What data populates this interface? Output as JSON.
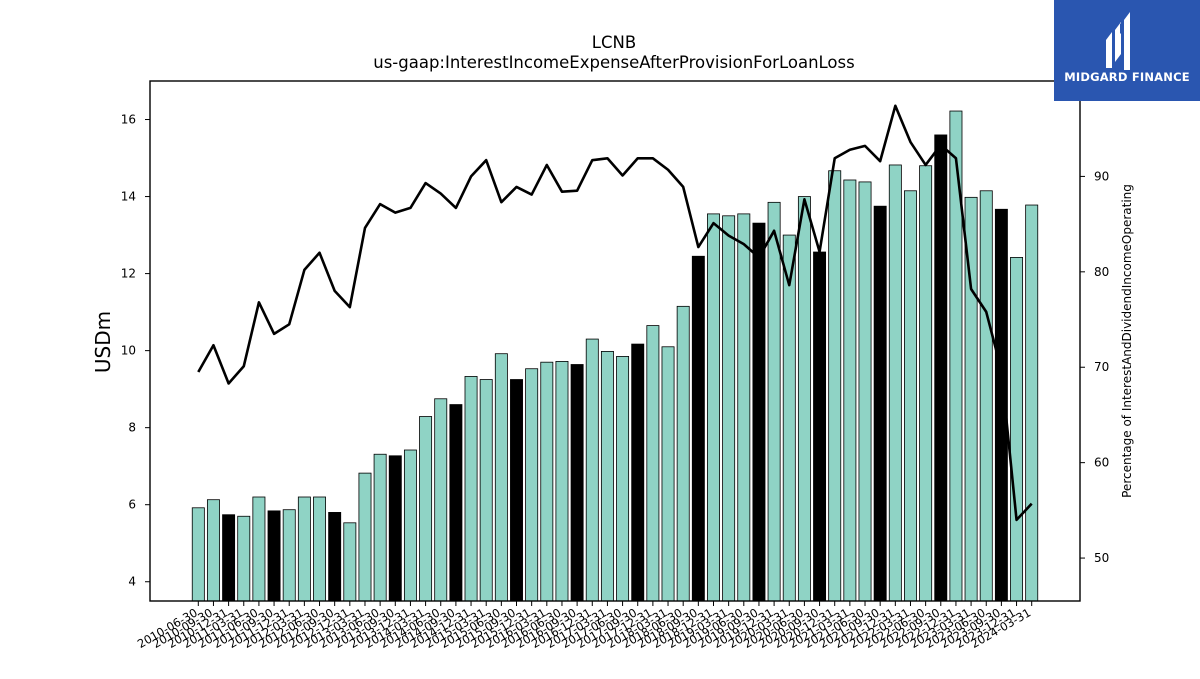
{
  "brand": {
    "name": "MIDGARD FINANCE",
    "bg_color": "#2a56b0"
  },
  "chart_data": {
    "type": "bar",
    "title": "LCNB",
    "subtitle": "us-gaap:InterestIncomeExpenseAfterProvisionForLoanLoss",
    "ylabel": "USDm",
    "y2label": "Percentage of InterestAndDividendIncomeOperating",
    "ylim": [
      3.5,
      17.0
    ],
    "y2lim": [
      45.5,
      100.0
    ],
    "yticks": [
      4,
      6,
      8,
      10,
      12,
      14,
      16
    ],
    "y2ticks": [
      50,
      60,
      70,
      80,
      90
    ],
    "bar_color": "#8fd3c5",
    "highlight_color": "#000000",
    "line_color": "#000000",
    "categories": [
      "2010-06-30",
      "2010-09-30",
      "2010-12-31",
      "2011-03-31",
      "2011-06-30",
      "2011-09-30",
      "2011-12-31",
      "2012-03-31",
      "2012-06-30",
      "2012-09-30",
      "2012-12-31",
      "2013-03-31",
      "2013-06-30",
      "2013-09-30",
      "2013-12-31",
      "2014-03-31",
      "2014-06-30",
      "2014-09-30",
      "2014-12-31",
      "2015-03-31",
      "2015-06-30",
      "2015-09-30",
      "2015-12-31",
      "2016-03-31",
      "2016-06-30",
      "2016-09-30",
      "2016-12-31",
      "2017-03-31",
      "2017-06-30",
      "2017-09-30",
      "2017-12-31",
      "2018-03-31",
      "2018-06-30",
      "2018-09-30",
      "2018-12-31",
      "2019-03-31",
      "2019-06-30",
      "2019-09-30",
      "2019-12-31",
      "2020-03-31",
      "2020-06-30",
      "2020-09-30",
      "2020-12-31",
      "2021-03-31",
      "2021-06-30",
      "2021-09-30",
      "2021-12-31",
      "2022-03-31",
      "2022-06-30",
      "2022-09-30",
      "2022-12-31",
      "2023-03-31",
      "2023-06-30",
      "2023-09-30",
      "2023-12-31",
      "2024-03-31"
    ],
    "tick_labels": [
      "2010-06-30",
      "2010-09-30",
      "2010-12-31",
      "2011-03-31",
      "2011-06-30",
      "2011-09-30",
      "2011-12-31",
      "2012-03-31",
      "2012-06-30",
      "2012-09-30",
      "2012-12-31",
      "2013-03-31",
      "2013-06-30",
      "2013-09-30",
      "2013-12-31",
      "2014-03-31",
      "2014-06-30",
      "2014-09-30",
      "2014-12-31",
      "2015-03-31",
      "2015-06-30",
      "2015-09-30",
      "2015-12-31",
      "2016-03-31",
      "2016-06-30",
      "2016-09-30",
      "2016-12-31",
      "2017-03-31",
      "2017-06-30",
      "2017-09-30",
      "2017-12-31",
      "2018-03-31",
      "2018-06-30",
      "2018-09-30",
      "2018-12-31",
      "2019-03-31",
      "2019-06-30",
      "2019-09-30",
      "2019-12-31",
      "2020-03-31",
      "2020-06-30",
      "2020-09-30",
      "2020-12-31",
      "2021-03-31",
      "2021-06-30",
      "2021-09-30",
      "2021-12-31",
      "2022-03-31",
      "2022-06-30",
      "2022-09-30",
      "2022-12-31",
      "2023-03-31",
      "2023-06-30",
      "2023-09-30",
      "2023-12-31",
      "2024-03-31"
    ],
    "values": [
      5.92,
      6.13,
      5.74,
      5.7,
      6.2,
      5.84,
      5.87,
      6.2,
      6.2,
      5.8,
      5.53,
      6.82,
      7.31,
      7.27,
      7.42,
      8.29,
      8.75,
      8.6,
      9.33,
      9.25,
      9.92,
      9.25,
      9.53,
      9.7,
      9.72,
      9.64,
      10.3,
      9.98,
      9.85,
      10.17,
      10.65,
      10.1,
      11.15,
      12.45,
      13.55,
      13.5,
      13.55,
      13.31,
      13.85,
      13.0,
      14.0,
      12.56,
      14.67,
      14.43,
      14.38,
      13.75,
      14.82,
      14.15,
      14.8,
      15.6,
      16.22,
      13.98,
      14.15,
      13.67,
      12.42,
      13.78
    ],
    "highlighted": [
      false,
      false,
      true,
      false,
      false,
      true,
      false,
      false,
      false,
      true,
      false,
      false,
      false,
      true,
      false,
      false,
      false,
      true,
      false,
      false,
      false,
      true,
      false,
      false,
      false,
      true,
      false,
      false,
      false,
      true,
      false,
      false,
      false,
      true,
      false,
      false,
      false,
      true,
      false,
      false,
      false,
      true,
      false,
      false,
      false,
      true,
      false,
      false,
      false,
      true,
      false,
      false,
      false,
      true,
      false,
      false
    ],
    "line_values": [
      69.5,
      72.3,
      68.3,
      70.1,
      76.8,
      73.5,
      74.5,
      80.2,
      82.0,
      78.0,
      76.3,
      84.6,
      87.1,
      86.2,
      86.7,
      89.3,
      88.2,
      86.7,
      90.0,
      91.7,
      87.3,
      88.9,
      88.1,
      91.2,
      88.4,
      88.5,
      91.7,
      91.9,
      90.1,
      91.9,
      91.9,
      90.7,
      88.9,
      82.6,
      85.1,
      83.8,
      82.9,
      81.5,
      84.3,
      78.6,
      87.6,
      82.1,
      91.9,
      92.8,
      93.2,
      91.6,
      97.4,
      93.6,
      91.2,
      93.3,
      91.9,
      78.2,
      75.8,
      69.7,
      54.0,
      55.7
    ]
  }
}
